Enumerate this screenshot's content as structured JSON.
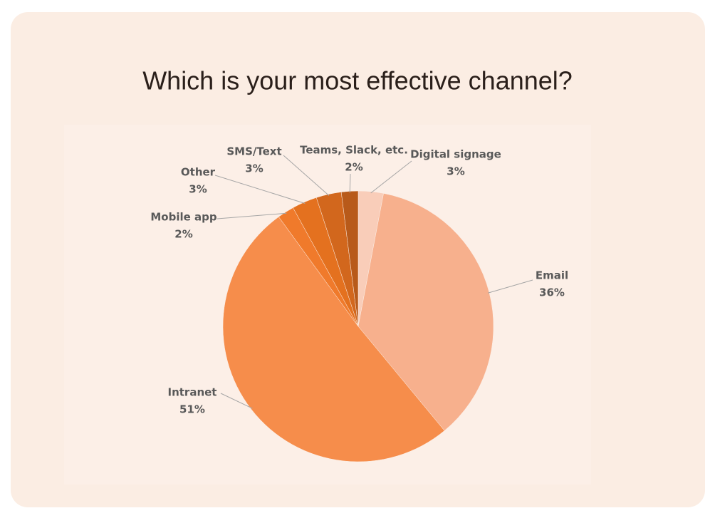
{
  "chart_data": {
    "type": "pie",
    "title": "Which is your most effective channel?",
    "categories": [
      "Digital signage",
      "Email",
      "Intranet",
      "Mobile app",
      "Other",
      "SMS/Text",
      "Teams, Slack, etc."
    ],
    "values": [
      3,
      36,
      51,
      2,
      3,
      3,
      2
    ],
    "value_labels": [
      "3%",
      "36%",
      "51%",
      "2%",
      "3%",
      "3%",
      "2%"
    ],
    "colors": [
      "#f9cdb9",
      "#f7b08d",
      "#f68d4b",
      "#f07a2b",
      "#e4711f",
      "#d2671d",
      "#b85a1a"
    ]
  }
}
